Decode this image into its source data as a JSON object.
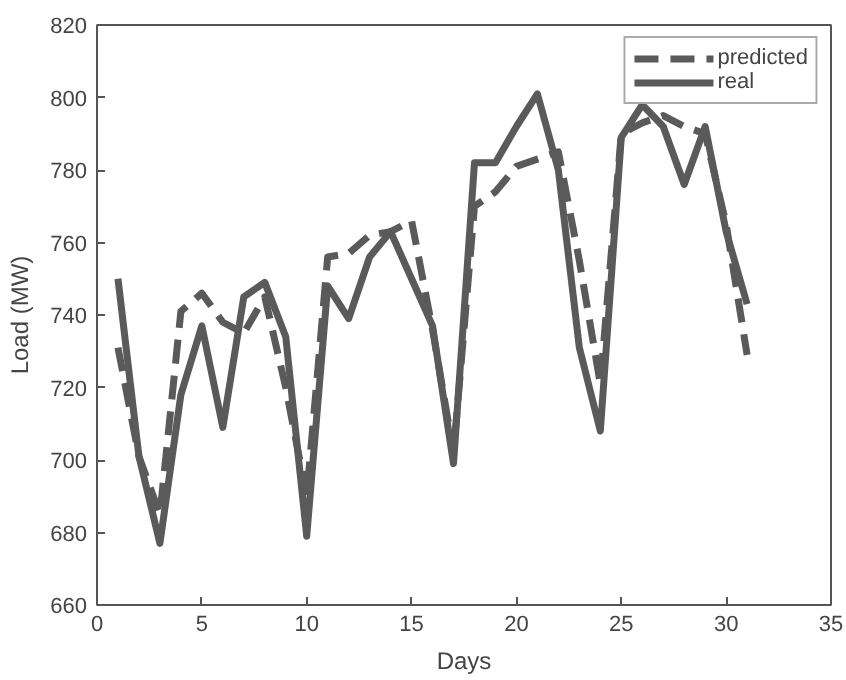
{
  "chart_data": {
    "type": "line",
    "xlabel": "Days",
    "ylabel": "Load (MW)",
    "x": [
      1,
      2,
      3,
      4,
      5,
      6,
      7,
      8,
      9,
      10,
      11,
      12,
      13,
      14,
      15,
      16,
      17,
      18,
      19,
      20,
      21,
      22,
      23,
      24,
      25,
      26,
      27,
      28,
      29,
      30,
      31
    ],
    "series": [
      {
        "name": "predicted",
        "color": "#5a5a5a",
        "line_style": "dashed",
        "values": [
          731,
          701,
          685,
          741,
          746,
          738,
          735,
          745,
          720,
          690,
          756,
          757,
          762,
          763,
          766,
          736,
          702,
          770,
          774,
          781,
          783,
          785,
          755,
          721,
          790,
          793,
          795,
          792,
          790,
          765,
          729
        ]
      },
      {
        "name": "real",
        "color": "#5a5a5a",
        "line_style": "solid",
        "values": [
          750,
          701,
          677,
          718,
          737,
          709,
          745,
          749,
          734,
          679,
          748,
          739,
          756,
          763,
          750,
          737,
          699,
          782,
          782,
          792,
          801,
          780,
          731,
          708,
          789,
          798,
          792,
          776,
          792,
          763,
          743
        ]
      }
    ],
    "xlim": [
      0,
      35
    ],
    "ylim": [
      660,
      820
    ],
    "xticks": [
      0,
      5,
      10,
      15,
      20,
      25,
      30,
      35
    ],
    "yticks": [
      660,
      680,
      700,
      720,
      740,
      760,
      780,
      800,
      820
    ],
    "grid": false,
    "legend": "top right",
    "marker": "none"
  }
}
